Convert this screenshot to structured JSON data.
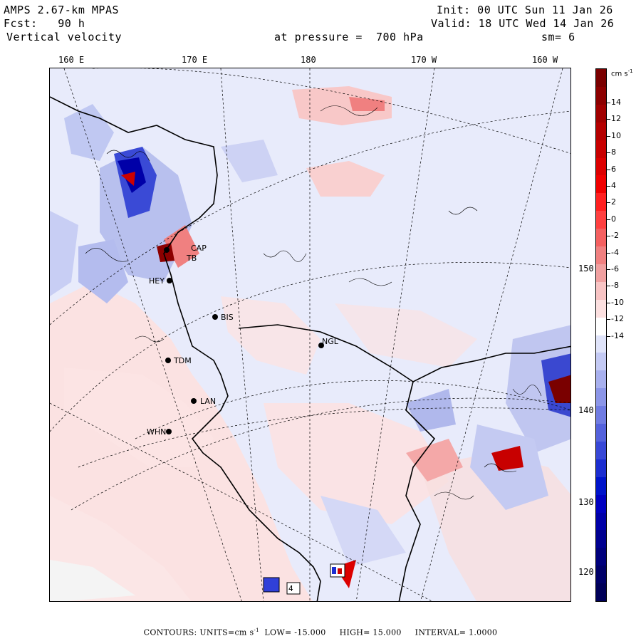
{
  "header": {
    "model": "AMPS 2.67-km MPAS",
    "init": "Init: 00 UTC Sun 11 Jan 26",
    "forecast": "Fcst:   90 h",
    "valid": "Valid: 18 UTC Wed 14 Jan 26",
    "variable": "Vertical velocity",
    "level": "at pressure =  700 hPa",
    "smoothing": "sm= 6"
  },
  "longitude_labels": [
    "160 E",
    "170 E",
    "180",
    "170 W",
    "160 W"
  ],
  "latitude_side_labels": [
    "150 W",
    "140 W",
    "130 W",
    "120 W"
  ],
  "stations": [
    "CAP",
    "TB",
    "HEY",
    "BIS",
    "NGL",
    "TDM",
    "LAN",
    "WHN"
  ],
  "map_annotation": "4",
  "colorbar": {
    "unit": "cm s",
    "unit_exponent": "-1",
    "tick_labels": [
      "14",
      "12",
      "10",
      "8",
      "6",
      "4",
      "2",
      "0",
      "-2",
      "-4",
      "-6",
      "-8",
      "-10",
      "-12",
      "-14"
    ],
    "colors": [
      "#7a0000",
      "#8c0000",
      "#a00000",
      "#b40000",
      "#c80000",
      "#dc0000",
      "#f00000",
      "#ff2020",
      "#ff4040",
      "#f46060",
      "#f08080",
      "#f0a0a0",
      "#f8c4c4",
      "#fce0e0",
      "#ffffff",
      "#e0e4fa",
      "#c4caf4",
      "#a8b0ee",
      "#8c96e8",
      "#707ce2",
      "#5462dc",
      "#3848d6",
      "#1c2ed0",
      "#0014ca",
      "#0000c0",
      "#0000a8",
      "#000090",
      "#00007c",
      "#000068",
      "#000058"
    ]
  },
  "footer": {
    "contours": "CONTOURS:  UNITS=cm s",
    "units_exp": "-1",
    "low": "LOW= -15.000",
    "high": "HIGH=  15.000",
    "interval": "INTERVAL=   1.0000"
  }
}
